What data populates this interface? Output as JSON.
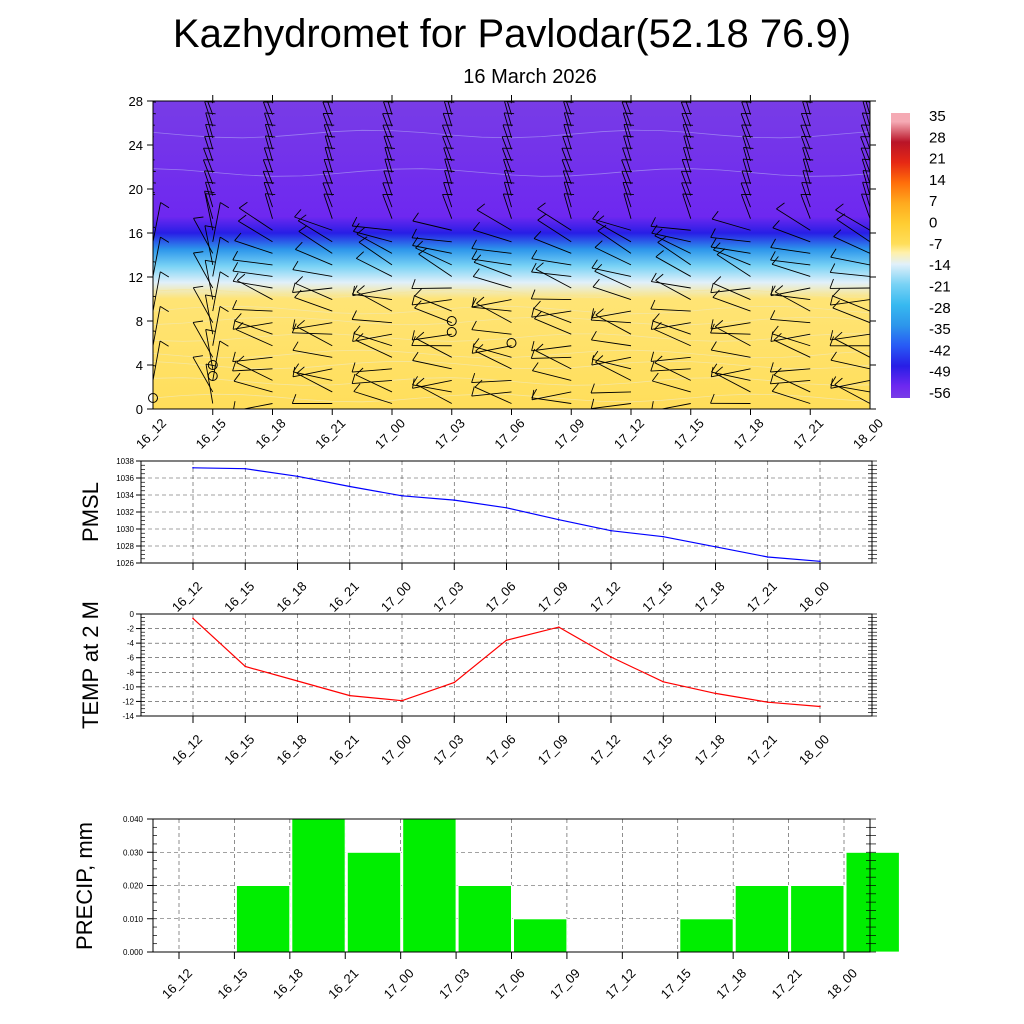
{
  "header": {
    "title": "Kazhydromet for Pavlodar(52.18 76.9)",
    "subtitle": "16 March 2026"
  },
  "time_labels": [
    "16_12",
    "16_15",
    "16_18",
    "16_21",
    "17_00",
    "17_03",
    "17_06",
    "17_09",
    "17_12",
    "17_15",
    "17_18",
    "17_21",
    "18_00"
  ],
  "colors": {
    "pmsl_line": "#0000ff",
    "temp_line": "#ff0000",
    "precip_bar": "#00ee00",
    "precip_bar_border": "#ffffff",
    "cross_section_shading": "#ffd23c",
    "grid": "#444444"
  },
  "chart_data": [
    {
      "id": "cross_section",
      "type": "heatmap",
      "title": "",
      "xlabel": "",
      "ylabel": "",
      "x": [
        "16_12",
        "16_15",
        "16_18",
        "16_21",
        "17_00",
        "17_03",
        "17_06",
        "17_09",
        "17_12",
        "17_15",
        "17_18",
        "17_21",
        "18_00"
      ],
      "ylim": [
        0,
        28
      ],
      "yticks": [
        0,
        4,
        8,
        12,
        16,
        20,
        24,
        28
      ],
      "colorbar": {
        "labels": [
          "35",
          "28",
          "21",
          "14",
          "7",
          "0",
          "-7",
          "-14",
          "-21",
          "-28",
          "-35",
          "-42",
          "-49",
          "-56"
        ]
      },
      "temperature_profile": [
        {
          "height": 0,
          "value": -7
        },
        {
          "height": 10,
          "value": -8
        },
        {
          "height": 11.5,
          "value": -14
        },
        {
          "height": 13,
          "value": -21
        },
        {
          "height": 14.5,
          "value": -35
        },
        {
          "height": 16,
          "value": -49
        },
        {
          "height": 17.5,
          "value": -56
        },
        {
          "height": 28,
          "value": -60
        }
      ],
      "circle_markers": [
        {
          "time": "16_12",
          "height": 1
        },
        {
          "time": "16_15",
          "height": 4
        },
        {
          "time": "16_15",
          "height": 3
        },
        {
          "time": "17_03",
          "height": 8
        },
        {
          "time": "17_03",
          "height": 7
        },
        {
          "time": "17_06",
          "height": 6
        }
      ]
    },
    {
      "id": "pmsl",
      "type": "line",
      "title": "",
      "xlabel": "",
      "ylabel": "PMSL",
      "x": [
        "16_12",
        "16_15",
        "16_18",
        "16_21",
        "17_00",
        "17_03",
        "17_06",
        "17_09",
        "17_12",
        "17_15",
        "17_18",
        "17_21",
        "18_00"
      ],
      "series": [
        {
          "name": "PMSL",
          "values": [
            1037.2,
            1037.1,
            1036.2,
            1035.0,
            1033.9,
            1033.4,
            1032.5,
            1031.1,
            1029.8,
            1029.1,
            1027.9,
            1026.7,
            1026.2
          ]
        }
      ],
      "ylim": [
        1026,
        1038
      ],
      "yticks": [
        1026,
        1028,
        1030,
        1032,
        1034,
        1036,
        1038
      ]
    },
    {
      "id": "temp",
      "type": "line",
      "title": "",
      "xlabel": "",
      "ylabel": "TEMP at 2 M",
      "x": [
        "16_12",
        "16_15",
        "16_18",
        "16_21",
        "17_00",
        "17_03",
        "17_06",
        "17_09",
        "17_12",
        "17_15",
        "17_18",
        "17_21",
        "18_00"
      ],
      "series": [
        {
          "name": "TEMP at 2 M",
          "values": [
            -0.6,
            -7.2,
            -9.2,
            -11.2,
            -11.9,
            -9.4,
            -3.6,
            -1.8,
            -5.9,
            -9.3,
            -10.9,
            -12.1,
            -12.7
          ]
        }
      ],
      "ylim": [
        -14,
        0
      ],
      "yticks": [
        0,
        -2,
        -4,
        -6,
        -8,
        -10,
        -12,
        -14
      ]
    },
    {
      "id": "precip",
      "type": "bar",
      "title": "",
      "xlabel": "",
      "ylabel": "PRECIP, mm",
      "categories": [
        "16_12",
        "16_15",
        "16_18",
        "16_21",
        "17_00",
        "17_03",
        "17_06",
        "17_09",
        "17_12",
        "17_15",
        "17_18",
        "17_21",
        "18_00"
      ],
      "values": [
        0,
        0.02,
        0.04,
        0.03,
        0.04,
        0.02,
        0.01,
        0,
        0,
        0.01,
        0.02,
        0.02,
        0.03
      ],
      "ylim": [
        0,
        0.04
      ],
      "ytick_labels": [
        "0.000",
        "0.010",
        "0.020",
        "0.030",
        "0.040"
      ]
    }
  ]
}
